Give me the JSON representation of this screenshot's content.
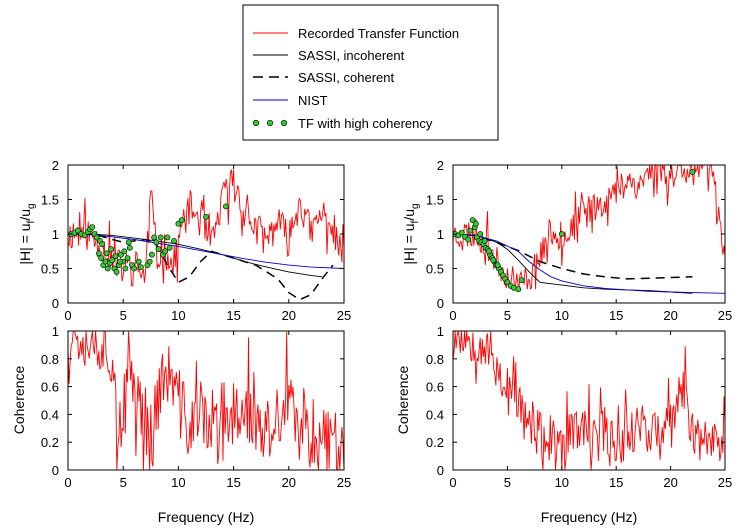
{
  "legend": [
    {
      "label": "Recorded Transfer Function",
      "style": "line",
      "color": "#ff0000",
      "dash": ""
    },
    {
      "label": "SASSI, incoherent",
      "style": "line",
      "color": "#000000",
      "dash": ""
    },
    {
      "label": "SASSI, coherent",
      "style": "line",
      "color": "#000000",
      "dash": "10,6"
    },
    {
      "label": "NIST",
      "style": "line",
      "color": "#0000cc",
      "dash": ""
    },
    {
      "label": "TF with high coherency",
      "style": "dots",
      "color": "#33cc33",
      "dash": ""
    }
  ],
  "axes_text": {
    "tf_ylabel_main": "|H| = u",
    "tf_ylabel_sub1": "f",
    "tf_ylabel_slash": "/u",
    "tf_ylabel_sub2": "g",
    "coh_ylabel": "Coherence",
    "xlabel": "Frequency (Hz)"
  },
  "chart_data": [
    {
      "type": "line",
      "panel": "tf-left",
      "xlim": [
        0,
        25
      ],
      "ylim": [
        0,
        2
      ],
      "xticks": [
        0,
        5,
        10,
        15,
        20,
        25
      ],
      "yticks": [
        0,
        0.5,
        1,
        1.5,
        2
      ],
      "ylabel": "|H| = uf/ug",
      "series": [
        {
          "name": "Recorded Transfer Function",
          "key": "recorded",
          "seed": 11,
          "x": [
            0,
            1,
            2,
            3,
            4,
            5,
            6,
            7,
            7.5,
            8,
            8.5,
            9,
            9.5,
            10,
            11,
            12,
            13,
            14,
            15,
            16,
            17,
            18,
            19,
            20,
            21,
            22,
            23,
            24,
            25
          ],
          "y": [
            1,
            1.02,
            1,
            0.85,
            0.6,
            0.5,
            0.55,
            0.4,
            1.6,
            0.6,
            0.8,
            0.7,
            0.5,
            0.9,
            1.4,
            1.2,
            0.8,
            1.5,
            1.8,
            1.3,
            1.1,
            0.9,
            1.2,
            0.9,
            1.5,
            1.0,
            1.3,
            1.1,
            0.6
          ],
          "noise": 0.25,
          "min": 0.25,
          "max": 2.1
        },
        {
          "name": "SASSI, incoherent",
          "key": "incoherent",
          "x": [
            0,
            2,
            4,
            6,
            8,
            10,
            12,
            14,
            16,
            18,
            20,
            22,
            23
          ],
          "y": [
            1,
            1,
            0.98,
            0.94,
            0.9,
            0.85,
            0.78,
            0.7,
            0.6,
            0.52,
            0.45,
            0.4,
            0.38
          ]
        },
        {
          "name": "SASSI, coherent",
          "key": "coherent",
          "x": [
            0,
            2,
            3,
            4,
            5,
            6,
            7,
            8,
            9,
            10,
            11,
            12,
            13,
            14,
            15,
            16,
            17,
            18,
            19,
            20,
            21,
            22,
            23,
            24
          ],
          "y": [
            1,
            1,
            0.97,
            0.92,
            0.88,
            0.9,
            0.92,
            0.85,
            0.55,
            0.3,
            0.38,
            0.6,
            0.75,
            0.7,
            0.65,
            0.6,
            0.55,
            0.45,
            0.35,
            0.15,
            0.05,
            0.12,
            0.35,
            0.55
          ]
        },
        {
          "name": "NIST",
          "key": "nist",
          "x": [
            0,
            2,
            4,
            6,
            8,
            10,
            12,
            14,
            16,
            18,
            20,
            22,
            25
          ],
          "y": [
            1,
            0.99,
            0.96,
            0.92,
            0.87,
            0.82,
            0.76,
            0.7,
            0.64,
            0.59,
            0.55,
            0.52,
            0.5
          ]
        },
        {
          "name": "TF with high coherency",
          "key": "dots",
          "x": [
            0.3,
            0.6,
            0.9,
            1.2,
            1.5,
            1.8,
            2.0,
            2.2,
            2.4,
            2.6,
            2.8,
            3.0,
            3.2,
            3.4,
            3.6,
            3.8,
            4.0,
            4.2,
            4.4,
            4.6,
            4.8,
            5.0,
            5.2,
            5.4,
            5.6,
            5.8,
            6.0,
            2.9,
            3.1,
            3.5,
            3.9,
            4.3,
            4.7,
            5.1,
            5.5,
            6.4,
            6.6,
            7.2,
            7.4,
            7.6,
            7.8,
            8.0,
            8.2,
            8.4,
            8.6,
            8.8,
            9.0,
            9.2,
            9.6,
            10.0,
            10.3,
            12.5,
            14.3
          ],
          "y": [
            1.0,
            1.02,
            1.05,
            1.0,
            0.98,
            1.03,
            1.07,
            1.1,
            1.0,
            0.95,
            0.72,
            0.65,
            0.55,
            0.6,
            0.5,
            0.58,
            0.62,
            0.5,
            0.45,
            0.55,
            0.7,
            0.6,
            0.5,
            0.65,
            0.8,
            0.55,
            0.5,
            0.9,
            0.85,
            0.72,
            0.78,
            0.68,
            0.6,
            0.75,
            0.88,
            0.6,
            0.52,
            0.55,
            0.6,
            0.7,
            0.95,
            0.88,
            0.78,
            0.95,
            0.7,
            0.75,
            0.95,
            0.8,
            0.9,
            1.15,
            1.2,
            1.25,
            1.4
          ]
        }
      ]
    },
    {
      "type": "line",
      "panel": "tf-right",
      "xlim": [
        0,
        25
      ],
      "ylim": [
        0,
        2
      ],
      "xticks": [
        0,
        5,
        10,
        15,
        20,
        25
      ],
      "yticks": [
        0,
        0.5,
        1,
        1.5,
        2
      ],
      "ylabel": "|H| = uf/ug",
      "series": [
        {
          "name": "Recorded Transfer Function",
          "key": "recorded",
          "seed": 23,
          "x": [
            0,
            1,
            2,
            3,
            4,
            5,
            6,
            7,
            8,
            9,
            10,
            11,
            12,
            13,
            14,
            15,
            16,
            17,
            18,
            19,
            20,
            21,
            22,
            23,
            24,
            25
          ],
          "y": [
            1,
            1,
            1.02,
            0.9,
            0.6,
            0.4,
            0.28,
            0.35,
            0.7,
            1.05,
            0.95,
            1.1,
            1.3,
            1.4,
            1.5,
            1.6,
            1.8,
            1.7,
            1.9,
            2.0,
            1.8,
            2.0,
            1.9,
            2.0,
            1.8,
            0.7
          ],
          "noise": 0.22,
          "min": 0.2,
          "max": 2.0
        },
        {
          "name": "SASSI, incoherent",
          "key": "incoherent",
          "x": [
            0,
            2,
            3,
            4,
            5,
            6,
            7,
            8,
            10,
            12,
            14,
            16,
            18,
            20,
            22
          ],
          "y": [
            1,
            0.98,
            0.94,
            0.88,
            0.78,
            0.62,
            0.45,
            0.3,
            0.26,
            0.22,
            0.2,
            0.19,
            0.18,
            0.16,
            0.14
          ]
        },
        {
          "name": "SASSI, coherent",
          "key": "coherent",
          "x": [
            0,
            2,
            4,
            6,
            8,
            10,
            12,
            14,
            16,
            18,
            20,
            22
          ],
          "y": [
            1,
            0.98,
            0.88,
            0.76,
            0.6,
            0.5,
            0.42,
            0.38,
            0.35,
            0.36,
            0.37,
            0.38
          ]
        },
        {
          "name": "NIST",
          "key": "nist",
          "x": [
            0,
            2,
            4,
            6,
            7,
            8,
            9,
            10,
            12,
            14,
            16,
            18,
            20,
            22,
            25
          ],
          "y": [
            1,
            0.98,
            0.9,
            0.75,
            0.6,
            0.48,
            0.38,
            0.32,
            0.25,
            0.21,
            0.19,
            0.17,
            0.16,
            0.15,
            0.14
          ]
        },
        {
          "name": "TF with high coherency",
          "key": "dots",
          "x": [
            0.2,
            0.5,
            0.8,
            1.1,
            1.4,
            1.6,
            1.8,
            2.0,
            2.2,
            2.4,
            2.6,
            2.8,
            3.0,
            3.2,
            3.4,
            3.6,
            3.8,
            4.0,
            4.2,
            4.4,
            4.6,
            4.8,
            5.0,
            5.3,
            5.6,
            6.0,
            6.3,
            2.1,
            2.5,
            2.9,
            3.3,
            3.7,
            4.1,
            10.0,
            22.0
          ],
          "y": [
            1.0,
            0.98,
            1.02,
            0.96,
            0.92,
            1.05,
            1.2,
            1.1,
            0.95,
            0.9,
            0.88,
            0.85,
            0.8,
            0.78,
            0.7,
            0.65,
            0.6,
            0.55,
            0.5,
            0.45,
            0.4,
            0.35,
            0.3,
            0.25,
            0.22,
            0.2,
            0.33,
            1.15,
            1.0,
            0.9,
            0.75,
            0.62,
            0.55,
            1.0,
            1.9
          ]
        }
      ]
    },
    {
      "type": "line",
      "panel": "coh-left",
      "xlim": [
        0,
        25
      ],
      "ylim": [
        0,
        1
      ],
      "xticks": [
        0,
        5,
        10,
        15,
        20,
        25
      ],
      "yticks": [
        0,
        0.2,
        0.4,
        0.6,
        0.8,
        1
      ],
      "ylabel": "Coherence",
      "xlabel": "Frequency (Hz)",
      "series": [
        {
          "name": "Coherence",
          "key": "recorded",
          "seed": 37,
          "x": [
            0,
            1,
            2,
            2.5,
            3,
            4,
            4.5,
            5,
            5.5,
            6,
            7,
            7.5,
            8,
            9,
            10,
            11,
            12,
            13,
            14,
            15,
            16,
            17,
            18,
            19,
            20,
            21,
            22,
            23,
            24,
            25
          ],
          "y": [
            1,
            1,
            0.99,
            0.95,
            0.92,
            0.85,
            0.4,
            0.1,
            0.8,
            0.6,
            0.4,
            0.1,
            0.5,
            0.7,
            0.5,
            0.3,
            0.4,
            0.35,
            0.2,
            0.4,
            0.5,
            0.3,
            0.25,
            0.35,
            0.5,
            0.2,
            0.3,
            0.25,
            0.2,
            0.2
          ],
          "noise": 0.25,
          "min": 0.0,
          "max": 1.0
        }
      ]
    },
    {
      "type": "line",
      "panel": "coh-right",
      "xlim": [
        0,
        25
      ],
      "ylim": [
        0,
        1
      ],
      "xticks": [
        0,
        5,
        10,
        15,
        20,
        25
      ],
      "yticks": [
        0,
        0.2,
        0.4,
        0.6,
        0.8,
        1
      ],
      "ylabel": "Coherence",
      "xlabel": "Frequency (Hz)",
      "series": [
        {
          "name": "Coherence",
          "key": "recorded",
          "seed": 53,
          "x": [
            0,
            1,
            2,
            3,
            4,
            5,
            6,
            7,
            8,
            9,
            10,
            11,
            12,
            13,
            14,
            15,
            16,
            17,
            18,
            19,
            20,
            21,
            22,
            23,
            24,
            25
          ],
          "y": [
            0.99,
            0.98,
            0.95,
            0.9,
            0.75,
            0.55,
            0.5,
            0.3,
            0.25,
            0.2,
            0.1,
            0.3,
            0.25,
            0.2,
            0.3,
            0.2,
            0.25,
            0.35,
            0.3,
            0.25,
            0.3,
            0.6,
            0.3,
            0.2,
            0.25,
            0.15
          ],
          "noise": 0.18,
          "min": 0.0,
          "max": 1.0
        }
      ]
    }
  ]
}
